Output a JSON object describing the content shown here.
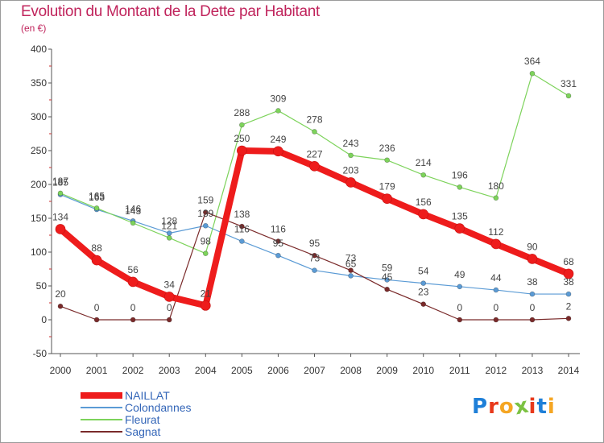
{
  "chart_data": {
    "type": "line",
    "title": "Evolution du Montant de la Dette par Habitant",
    "subtitle": "(en €)",
    "x": [
      "2000",
      "2001",
      "2002",
      "2003",
      "2004",
      "2005",
      "2006",
      "2007",
      "2008",
      "2009",
      "2010",
      "2011",
      "2012",
      "2013",
      "2014"
    ],
    "ylim": [
      -50,
      400
    ],
    "yticks": [
      -50,
      0,
      50,
      100,
      150,
      200,
      250,
      300,
      350,
      400
    ],
    "grid": false,
    "legend_position": "bottom-left",
    "series": [
      {
        "name": "NAILLAT",
        "color": "#ee1c1c",
        "values": [
          134,
          88,
          56,
          34,
          21,
          250,
          249,
          227,
          203,
          179,
          156,
          135,
          112,
          90,
          68
        ]
      },
      {
        "name": "Colondannes",
        "color": "#5b9bd5",
        "values": [
          185,
          163,
          146,
          128,
          139,
          116,
          95,
          73,
          65,
          59,
          54,
          49,
          44,
          38,
          38
        ]
      },
      {
        "name": "Fleurat",
        "color": "#7dd35b",
        "values": [
          187,
          165,
          143,
          121,
          98,
          288,
          309,
          278,
          243,
          236,
          214,
          196,
          180,
          364,
          331
        ]
      },
      {
        "name": "Sagnat",
        "color": "#7a2a2a",
        "values": [
          20,
          0,
          0,
          0,
          159,
          138,
          116,
          95,
          73,
          45,
          23,
          0,
          0,
          0,
          2
        ]
      }
    ]
  },
  "brand": {
    "letters": [
      "P",
      "r",
      "o",
      "x",
      "i",
      "t",
      "i"
    ],
    "colors": [
      "#1e7fd8",
      "#e8391b",
      "#f5a623",
      "#7cc242",
      "#e8391b",
      "#1e7fd8",
      "#f5a623"
    ]
  }
}
